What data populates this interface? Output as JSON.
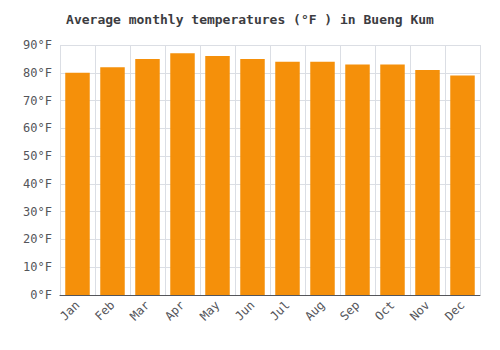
{
  "chart_data": {
    "type": "bar",
    "title": "Average monthly temperatures (°F ) in Bueng Kum",
    "categories": [
      "Jan",
      "Feb",
      "Mar",
      "Apr",
      "May",
      "Jun",
      "Jul",
      "Aug",
      "Sep",
      "Oct",
      "Nov",
      "Dec"
    ],
    "values": [
      80,
      82,
      85,
      87,
      86,
      85,
      84,
      84,
      83,
      83,
      81,
      79
    ],
    "color": "#F5900A",
    "ylim": [
      0,
      90
    ],
    "yticks": [
      {
        "value": 0,
        "label": "0°F"
      },
      {
        "value": 10,
        "label": "10°F"
      },
      {
        "value": 20,
        "label": "20°F"
      },
      {
        "value": 30,
        "label": "30°F"
      },
      {
        "value": 40,
        "label": "40°F"
      },
      {
        "value": 50,
        "label": "50°F"
      },
      {
        "value": 60,
        "label": "60°F"
      },
      {
        "value": 70,
        "label": "70°F"
      },
      {
        "value": 80,
        "label": "80°F"
      },
      {
        "value": 90,
        "label": "90°F"
      }
    ],
    "grid": true
  }
}
